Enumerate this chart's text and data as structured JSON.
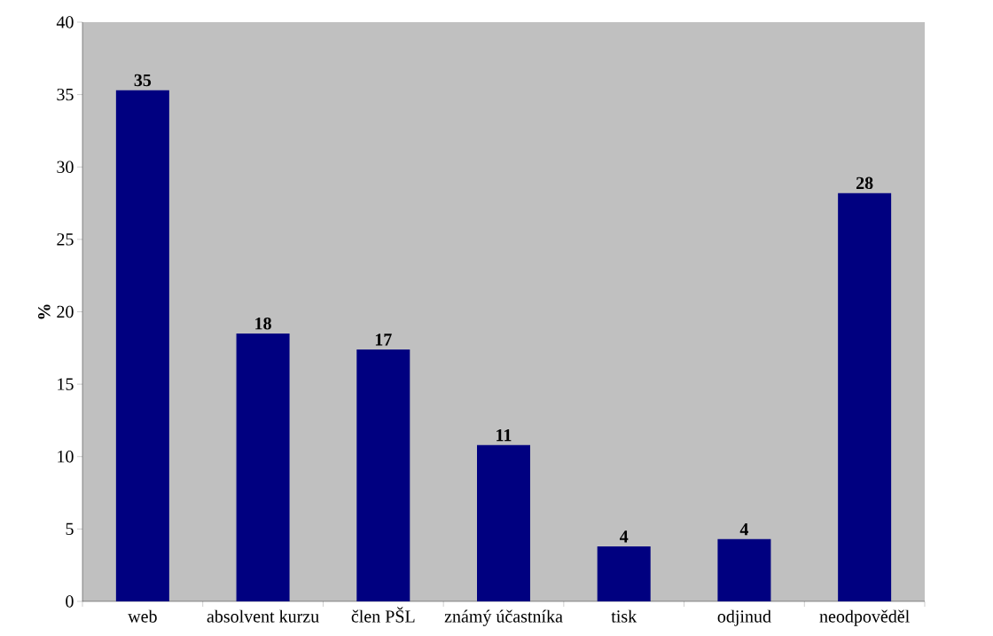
{
  "chart_data": {
    "type": "bar",
    "ylabel": "%",
    "categories": [
      "web",
      "absolvent kurzu",
      "člen PŠL",
      "známý účastníka",
      "tisk",
      "odjinud",
      "neodpověděl"
    ],
    "values": [
      35.3,
      18.5,
      17.4,
      10.8,
      3.8,
      4.3,
      28.2
    ],
    "value_labels": [
      "35",
      "18",
      "17",
      "11",
      "4",
      "4",
      "28"
    ],
    "color": "#000080",
    "ylim": [
      0,
      40
    ],
    "yticks": [
      0,
      5,
      10,
      15,
      20,
      25,
      30,
      35,
      40
    ]
  }
}
